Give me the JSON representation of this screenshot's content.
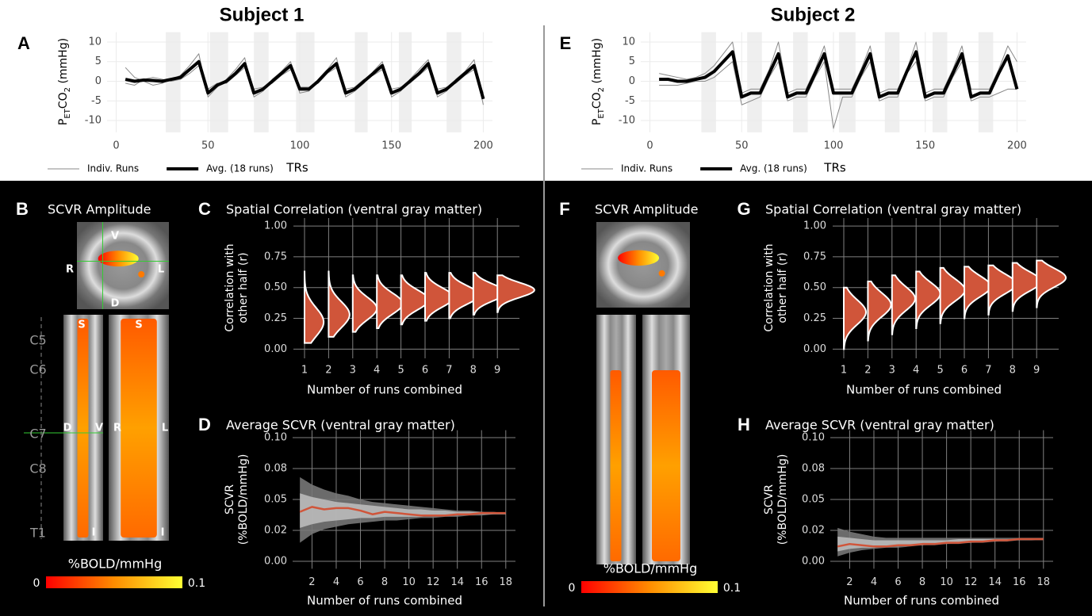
{
  "titles": [
    "Subject 1",
    "Subject 2"
  ],
  "chart_data": [
    {
      "type": "line",
      "panel": "A",
      "x": [
        5,
        10,
        15,
        20,
        25,
        30,
        35,
        40,
        45,
        50,
        55,
        60,
        65,
        70,
        75,
        80,
        85,
        90,
        95,
        100,
        105,
        110,
        115,
        120,
        125,
        130,
        135,
        140,
        145,
        150,
        155,
        160,
        165,
        170,
        175,
        180,
        185,
        190,
        195,
        200
      ],
      "xlim": [
        -5,
        205
      ],
      "xticks": [
        0,
        50,
        100,
        150,
        200
      ],
      "ylim": [
        -13,
        12.5
      ],
      "yticks": [
        -10,
        -5,
        0,
        5,
        10
      ],
      "xlabel": "TRs",
      "ylabel": [
        "P",
        "ET",
        "CO",
        "2",
        " (mmHg)"
      ],
      "grid": true,
      "shaded": [
        [
          27,
          35
        ],
        [
          51,
          61
        ],
        [
          75,
          83
        ],
        [
          98,
          108
        ],
        [
          130,
          137
        ],
        [
          154,
          161
        ],
        [
          180,
          188
        ]
      ],
      "series": [
        {
          "name": "Indiv. Runs",
          "color": "#888888",
          "width": 1,
          "values": [
            3.5,
            1,
            0,
            -1,
            -0.5,
            0.5,
            1.5,
            4,
            7,
            -4,
            -1.5,
            0.5,
            3,
            6,
            -4,
            -2.5,
            0.5,
            2.5,
            5,
            -3,
            -2.5,
            0.5,
            3,
            6,
            -4,
            -2.5,
            -0.5,
            2.5,
            5,
            -4,
            -2.5,
            0.5,
            3,
            5.5,
            -4,
            -2.5,
            0.5,
            2.5,
            5.5,
            -6
          ]
        },
        {
          "color": "#888888",
          "width": 1,
          "values": [
            -0.5,
            -1,
            0.5,
            1,
            0.5,
            0,
            0.5,
            2,
            4,
            -2,
            -0.5,
            -0.5,
            1.5,
            3.5,
            -2,
            -1.5,
            -0.5,
            1.5,
            3,
            -1.5,
            -1.5,
            -0.5,
            2,
            3.5,
            -2,
            -1.5,
            0.5,
            1.5,
            3,
            -2,
            -1.5,
            -0.5,
            1.5,
            3.5,
            -2,
            -1.5,
            -0.5,
            1.5,
            3,
            -3
          ]
        },
        {
          "name": "Avg. (18 runs)",
          "color": "#000000",
          "width": 4,
          "values": [
            0.5,
            0,
            0.3,
            0.2,
            0,
            0.5,
            1,
            3,
            5,
            -3,
            -1,
            0,
            2,
            4.5,
            -3,
            -2,
            0,
            2,
            4,
            -2,
            -2,
            0,
            2.5,
            4.5,
            -3,
            -2,
            0,
            2,
            4,
            -3,
            -2,
            0,
            2,
            4.5,
            -3,
            -2,
            0,
            2,
            4,
            -4.5
          ]
        }
      ]
    },
    {
      "type": "violin",
      "panel": "C",
      "title": "Spatial Correlation (ventral gray matter)",
      "categories": [
        "1",
        "2",
        "3",
        "4",
        "5",
        "6",
        "7",
        "8",
        "9"
      ],
      "values": [
        0.22,
        0.28,
        0.33,
        0.37,
        0.4,
        0.42,
        0.44,
        0.46,
        0.48
      ],
      "lows": [
        0.05,
        0.1,
        0.14,
        0.17,
        0.2,
        0.23,
        0.25,
        0.28,
        0.3
      ],
      "highs": [
        0.63,
        0.63,
        0.6,
        0.6,
        0.6,
        0.62,
        0.62,
        0.62,
        0.6
      ],
      "color": "#d0553a",
      "ylim": [
        -0.075,
        1.065
      ],
      "yticks": [
        {
          "value": 0,
          "label": "0.00"
        },
        {
          "value": 0.25,
          "label": "0.25"
        },
        {
          "value": 0.5,
          "label": "0.50"
        },
        {
          "value": 0.75,
          "label": "0.75"
        },
        {
          "value": 1,
          "label": "1.00"
        }
      ],
      "xlabel": "Number of runs combined",
      "ylabel": [
        "Correlation with",
        "other half (r)"
      ],
      "grid": true
    },
    {
      "type": "line",
      "panel": "D",
      "title": "Average SCVR (ventral gray matter)",
      "x": [
        1,
        2,
        3,
        4,
        5,
        6,
        7,
        8,
        9,
        10,
        11,
        12,
        13,
        14,
        15,
        16,
        17,
        18
      ],
      "xlim": [
        0.4,
        18.8
      ],
      "xticks": [
        2,
        4,
        6,
        8,
        10,
        12,
        14,
        16,
        18
      ],
      "ylim": [
        -0.006,
        0.106
      ],
      "yticks": [
        {
          "value": 0,
          "label": "0.00"
        },
        {
          "value": 0.025,
          "label": "0.02"
        },
        {
          "value": 0.05,
          "label": "0.05"
        },
        {
          "value": 0.075,
          "label": "0.08"
        },
        {
          "value": 0.1,
          "label": "0.10"
        }
      ],
      "xlabel": "Number of runs combined",
      "ylabel": [
        "SCVR",
        "(%BOLD/mmHg)"
      ],
      "grid": true,
      "bands": [
        {
          "color": "#777777",
          "lower": [
            0.015,
            0.022,
            0.026,
            0.028,
            0.03,
            0.031,
            0.032,
            0.033,
            0.033,
            0.034,
            0.035,
            0.035,
            0.036,
            0.036,
            0.037,
            0.037,
            0.038,
            0.038
          ],
          "upper": [
            0.068,
            0.062,
            0.058,
            0.055,
            0.053,
            0.05,
            0.048,
            0.047,
            0.046,
            0.045,
            0.044,
            0.043,
            0.042,
            0.041,
            0.041,
            0.04,
            0.04,
            0.039
          ]
        },
        {
          "color": "#bbbbbb",
          "lower": [
            0.027,
            0.03,
            0.032,
            0.033,
            0.034,
            0.035,
            0.035,
            0.036,
            0.036,
            0.036,
            0.036,
            0.037,
            0.037,
            0.037,
            0.038,
            0.038,
            0.038,
            0.038
          ],
          "upper": [
            0.055,
            0.052,
            0.05,
            0.048,
            0.047,
            0.046,
            0.045,
            0.044,
            0.043,
            0.042,
            0.042,
            0.041,
            0.041,
            0.04,
            0.04,
            0.04,
            0.039,
            0.039
          ]
        }
      ],
      "series": [
        {
          "color": "#d0553a",
          "width": 2.5,
          "values": [
            0.04,
            0.044,
            0.042,
            0.043,
            0.043,
            0.041,
            0.038,
            0.04,
            0.039,
            0.038,
            0.037,
            0.037,
            0.037,
            0.038,
            0.038,
            0.039,
            0.039,
            0.039
          ]
        }
      ]
    },
    {
      "type": "line",
      "panel": "E",
      "x": [
        5,
        10,
        15,
        20,
        25,
        30,
        35,
        40,
        45,
        50,
        55,
        60,
        65,
        70,
        75,
        80,
        85,
        90,
        95,
        100,
        105,
        110,
        115,
        120,
        125,
        130,
        135,
        140,
        145,
        150,
        155,
        160,
        165,
        170,
        175,
        180,
        185,
        190,
        195,
        200
      ],
      "xlim": [
        -5,
        205
      ],
      "xticks": [
        0,
        50,
        100,
        150,
        200
      ],
      "ylim": [
        -13,
        12.5
      ],
      "yticks": [
        -10,
        -5,
        0,
        5,
        10
      ],
      "xlabel": "TRs",
      "ylabel": [
        "P",
        "ET",
        "CO",
        "2",
        " (mmHg)"
      ],
      "grid": true,
      "shaded": [
        [
          28,
          36
        ],
        [
          53,
          61
        ],
        [
          78,
          86
        ],
        [
          103,
          112
        ],
        [
          128,
          136
        ],
        [
          154,
          162
        ],
        [
          179,
          187
        ]
      ],
      "series": [
        {
          "name": "Indiv. Runs",
          "color": "#888888",
          "width": 1,
          "values": [
            2,
            1.5,
            1,
            0.5,
            1,
            2,
            4,
            7,
            10,
            -3,
            -2,
            -2,
            3,
            10,
            -3,
            -2,
            -2,
            3,
            9,
            -2,
            -2,
            -2,
            3,
            9,
            -3,
            -2,
            -2,
            3,
            10,
            -3,
            -2,
            -2,
            3,
            9,
            -2,
            -2,
            -2,
            3,
            9,
            5
          ]
        },
        {
          "color": "#888888",
          "width": 1,
          "values": [
            -1,
            -1,
            -1,
            -0.5,
            0,
            0,
            1,
            3,
            5,
            -6,
            -5,
            -4,
            1,
            5,
            -5,
            -4,
            -4,
            1,
            5,
            -12,
            -4,
            -4,
            1,
            5,
            -5,
            -4,
            -4,
            2,
            5,
            -5,
            -4,
            -4,
            1,
            5,
            -5,
            -4,
            -4,
            -3,
            -2,
            -2
          ]
        },
        {
          "name": "Avg. (18 runs)",
          "color": "#000000",
          "width": 4,
          "values": [
            0.5,
            0.5,
            0,
            0,
            0.5,
            1,
            2.5,
            5,
            7.5,
            -4,
            -3,
            -3,
            2,
            7,
            -4,
            -3,
            -3,
            2,
            7,
            -3,
            -3,
            -3,
            2,
            7,
            -4,
            -3,
            -3,
            2.5,
            7.5,
            -4,
            -3,
            -3,
            2,
            7,
            -4,
            -3,
            -3,
            2,
            6.5,
            -2
          ]
        }
      ]
    },
    {
      "type": "violin",
      "panel": "G",
      "title": "Spatial Correlation (ventral gray matter)",
      "categories": [
        "1",
        "2",
        "3",
        "4",
        "5",
        "6",
        "7",
        "8",
        "9"
      ],
      "values": [
        0.3,
        0.36,
        0.41,
        0.45,
        0.48,
        0.51,
        0.53,
        0.55,
        0.58
      ],
      "lows": [
        0.0,
        0.07,
        0.12,
        0.17,
        0.21,
        0.25,
        0.28,
        0.31,
        0.34
      ],
      "highs": [
        0.5,
        0.55,
        0.6,
        0.63,
        0.66,
        0.67,
        0.68,
        0.7,
        0.72
      ],
      "color": "#d0553a",
      "ylim": [
        -0.075,
        1.065
      ],
      "yticks": [
        {
          "value": 0,
          "label": "0.00"
        },
        {
          "value": 0.25,
          "label": "0.25"
        },
        {
          "value": 0.5,
          "label": "0.50"
        },
        {
          "value": 0.75,
          "label": "0.75"
        },
        {
          "value": 1,
          "label": "1.00"
        }
      ],
      "xlabel": "Number of runs combined",
      "ylabel": [
        "Correlation with",
        "other half (r)"
      ],
      "grid": true
    },
    {
      "type": "line",
      "panel": "H",
      "title": "Average SCVR (ventral gray matter)",
      "x": [
        1,
        2,
        3,
        4,
        5,
        6,
        7,
        8,
        9,
        10,
        11,
        12,
        13,
        14,
        15,
        16,
        17,
        18
      ],
      "xlim": [
        0.4,
        18.8
      ],
      "xticks": [
        2,
        4,
        6,
        8,
        10,
        12,
        14,
        16,
        18
      ],
      "ylim": [
        -0.006,
        0.106
      ],
      "yticks": [
        {
          "value": 0,
          "label": "0.00"
        },
        {
          "value": 0.025,
          "label": "0.02"
        },
        {
          "value": 0.05,
          "label": "0.05"
        },
        {
          "value": 0.075,
          "label": "0.08"
        },
        {
          "value": 0.1,
          "label": "0.10"
        }
      ],
      "xlabel": "Number of runs combined",
      "ylabel": [
        "SCVR",
        "(%BOLD/mmHg)"
      ],
      "grid": true,
      "bands": [
        {
          "color": "#777777",
          "lower": [
            0.004,
            0.007,
            0.009,
            0.01,
            0.011,
            0.011,
            0.012,
            0.013,
            0.013,
            0.014,
            0.014,
            0.015,
            0.015,
            0.016,
            0.016,
            0.017,
            0.017,
            0.017
          ],
          "upper": [
            0.027,
            0.024,
            0.022,
            0.02,
            0.019,
            0.019,
            0.019,
            0.019,
            0.019,
            0.019,
            0.019,
            0.019,
            0.019,
            0.019,
            0.019,
            0.019,
            0.019,
            0.019
          ]
        },
        {
          "color": "#bbbbbb",
          "lower": [
            0.008,
            0.01,
            0.011,
            0.011,
            0.012,
            0.012,
            0.013,
            0.013,
            0.014,
            0.014,
            0.015,
            0.015,
            0.016,
            0.016,
            0.017,
            0.017,
            0.017,
            0.018
          ],
          "upper": [
            0.02,
            0.019,
            0.018,
            0.017,
            0.017,
            0.017,
            0.017,
            0.017,
            0.017,
            0.017,
            0.018,
            0.018,
            0.018,
            0.018,
            0.018,
            0.018,
            0.018,
            0.018
          ]
        }
      ],
      "series": [
        {
          "color": "#d0553a",
          "width": 2.5,
          "values": [
            0.012,
            0.014,
            0.013,
            0.012,
            0.012,
            0.013,
            0.013,
            0.014,
            0.014,
            0.015,
            0.015,
            0.016,
            0.016,
            0.017,
            0.017,
            0.018,
            0.018,
            0.018
          ]
        }
      ]
    }
  ],
  "images": [
    {
      "panel": "B",
      "title": "SCVR Amplitude",
      "axial_labels": [
        "V",
        "R",
        "L",
        "D"
      ],
      "sagittal_labels": [
        "S",
        "D",
        "V",
        "I"
      ],
      "coronal_labels": [
        "S",
        "R",
        "L",
        "I"
      ],
      "levels": [
        "C5",
        "C6",
        "C7",
        "C8",
        "T1"
      ],
      "colorbar": {
        "label": "%BOLD/mmHg",
        "lim": [
          0,
          0.1
        ]
      }
    },
    {
      "panel": "F",
      "title": "SCVR Amplitude",
      "colorbar": {
        "label": "%BOLD/mmHg",
        "lim": [
          0,
          0.1
        ]
      }
    }
  ]
}
